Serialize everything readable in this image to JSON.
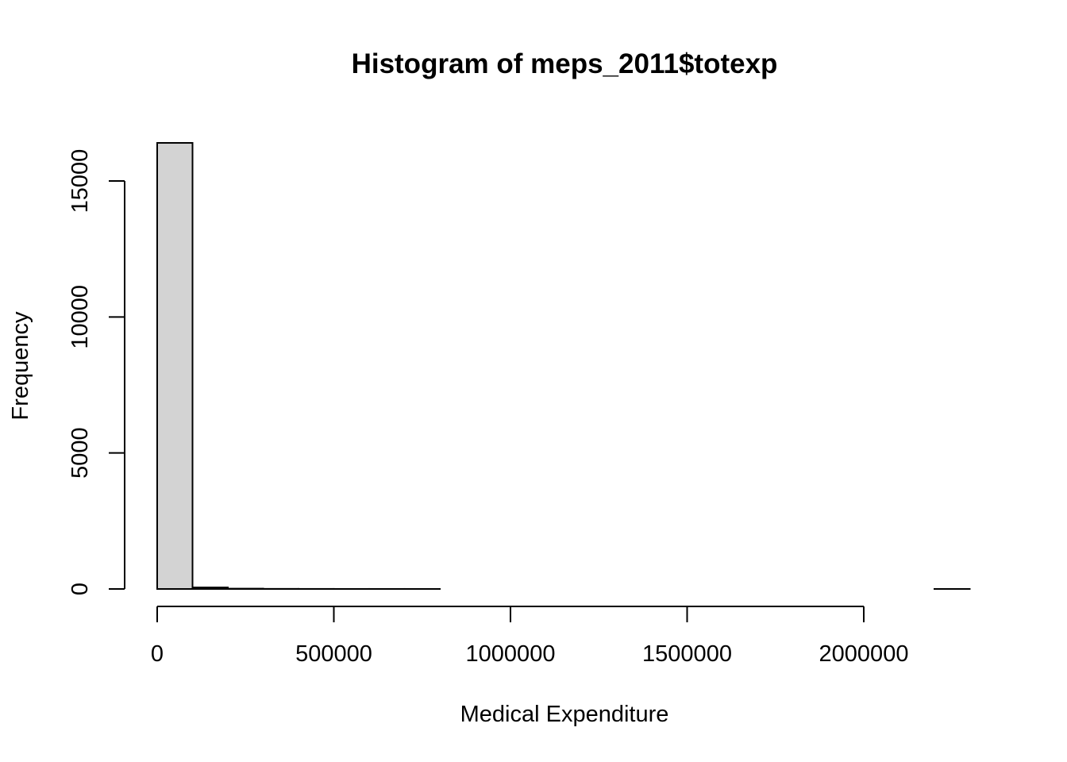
{
  "chart_data": {
    "type": "bar",
    "title": "Histogram of meps_2011$totexp",
    "xlabel": "Medical Expenditure",
    "ylabel": "Frequency",
    "bin_width": 100000,
    "bin_starts": [
      0,
      100000,
      200000,
      300000,
      400000,
      500000,
      600000,
      700000,
      800000,
      900000,
      1000000,
      1100000,
      1200000,
      1300000,
      1400000,
      1500000,
      1600000,
      1700000,
      1800000,
      1900000,
      2000000,
      2100000,
      2200000
    ],
    "values": [
      16400,
      55,
      12,
      4,
      2,
      1,
      1,
      1,
      0,
      0,
      0,
      0,
      0,
      0,
      0,
      0,
      0,
      0,
      0,
      0,
      0,
      0,
      1
    ],
    "xlim": [
      0,
      2300000
    ],
    "ylim": [
      0,
      16400
    ],
    "x_ticks": [
      0,
      500000,
      1000000,
      1500000,
      2000000
    ],
    "x_tick_labels": [
      "0",
      "500000",
      "1000000",
      "1500000",
      "2000000"
    ],
    "y_ticks": [
      0,
      5000,
      10000,
      15000
    ],
    "y_tick_labels": [
      "0",
      "5000",
      "10000",
      "15000"
    ],
    "bar_color": "#d3d3d3",
    "grid": false,
    "legend": "none"
  }
}
